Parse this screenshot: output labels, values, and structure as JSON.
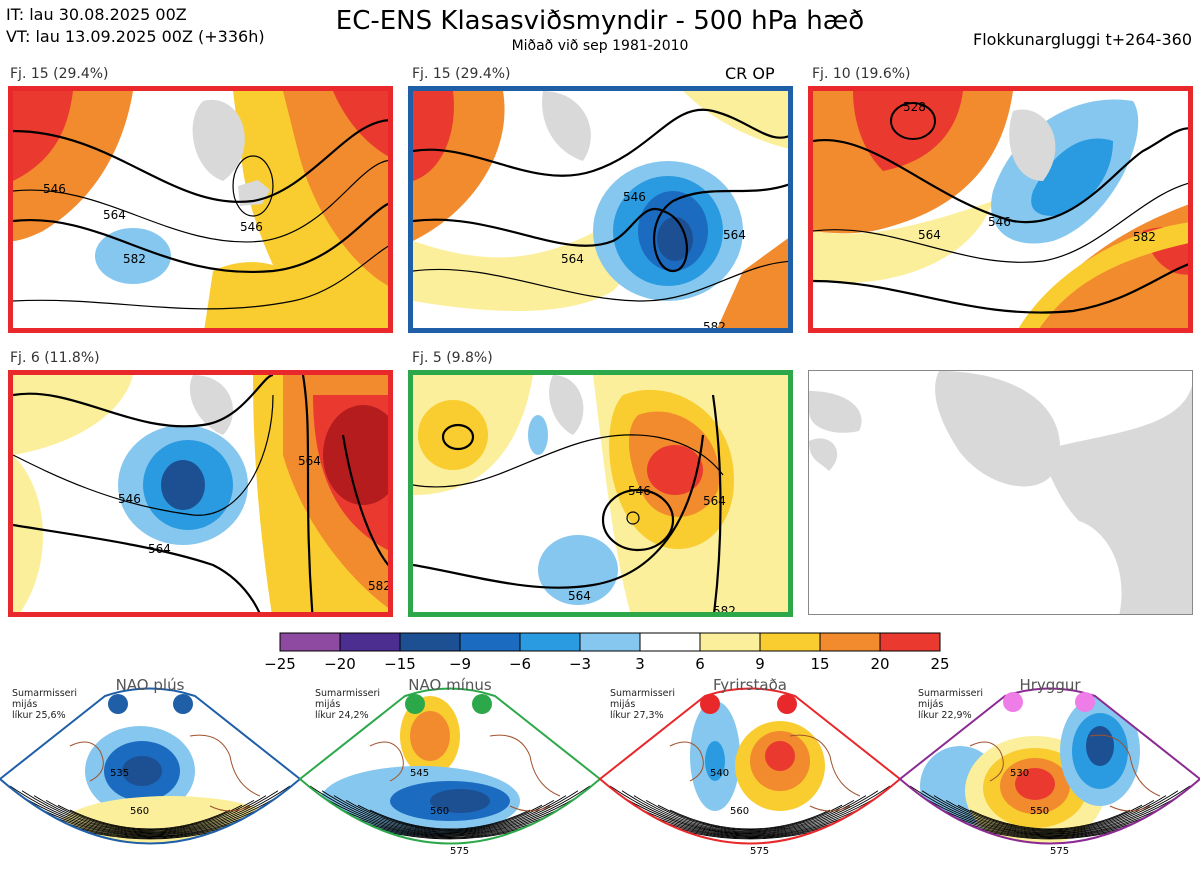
{
  "header": {
    "line1": "IT: lau 30.08.2025 00Z",
    "line2": "VT: lau 13.09.2025 00Z  (+336h)",
    "title": "EC-ENS Klasasviðsmyndir - 500 hPa hæð",
    "subtitle": "Miðað við sep 1981-2010",
    "right": "Flokkunargluggi t+264-360"
  },
  "panels": [
    {
      "label": "Fj. 15 (29.4%)",
      "frame_color": "#e8282b",
      "extra": ""
    },
    {
      "label": "Fj. 15 (29.4%)",
      "frame_color": "#1f5fa8",
      "extra": "CR OP"
    },
    {
      "label": "Fj. 10 (19.6%)",
      "frame_color": "#e8282b",
      "extra": ""
    },
    {
      "label": "Fj. 6 (11.8%)",
      "frame_color": "#e8282b",
      "extra": ""
    },
    {
      "label": "Fj. 5 (9.8%)",
      "frame_color": "#2ca84a",
      "extra": ""
    }
  ],
  "colorbar": {
    "ticks": [
      "−25",
      "−20",
      "−15",
      "−9",
      "−6",
      "−3",
      "3",
      "6",
      "9",
      "15",
      "20",
      "25"
    ],
    "colors": [
      "#8e4aa0",
      "#4b2e8f",
      "#1d4f93",
      "#1b6cc0",
      "#2a9be0",
      "#86c7ef",
      "#ffffff",
      "#fcef9c",
      "#f9cd30",
      "#f18b2e",
      "#ea3a30",
      "#b51c1e"
    ]
  },
  "regimes": [
    {
      "title": "NAO plús",
      "meta1": "Sumarmisseri",
      "meta2": "mijás",
      "meta3": "líkur 25,6%",
      "dot_color": "#1f5fa8",
      "frame_color": "#1f5fa8",
      "c1": "535",
      "c2": "560"
    },
    {
      "title": "NAO mínus",
      "meta1": "Sumarmisseri",
      "meta2": "mijás",
      "meta3": "líkur 24,2%",
      "dot_color": "#2ca84a",
      "frame_color": "#2ca84a",
      "c1": "545",
      "c2": "560",
      "c3": "575"
    },
    {
      "title": "Fyrirstaða",
      "meta1": "Sumarmisseri",
      "meta2": "mijás",
      "meta3": "líkur 27,3%",
      "dot_color": "#e8282b",
      "frame_color": "#e8282b",
      "c1": "540",
      "c2": "560",
      "c3": "575"
    },
    {
      "title": "Hryggur",
      "meta1": "Sumarmisseri",
      "meta2": "mijás",
      "meta3": "líkur 22,9%",
      "dot_color": "#ee7de8",
      "frame_color": "#8b2a92",
      "c1": "530",
      "c2": "550",
      "c3": "575"
    }
  ],
  "chart_data": {
    "type": "heatmap",
    "title": "EC-ENS Klasasviðsmyndir - 500 hPa hæð",
    "subtitle": "Miðað við sep 1981-2010",
    "variable": "500 hPa geopotential height anomaly",
    "anomaly_levels": [
      -25,
      -20,
      -15,
      -9,
      -6,
      -3,
      3,
      6,
      9,
      15,
      20,
      25
    ],
    "contour_labels_dam": [
      546,
      564,
      582
    ],
    "clusters": [
      {
        "name": "Fj. 15",
        "percent": 29.4,
        "regime": "Fyrirstaða"
      },
      {
        "name": "Fj. 15",
        "percent": 29.4,
        "regime": "NAO plús",
        "contains": "CR OP"
      },
      {
        "name": "Fj. 10",
        "percent": 19.6,
        "regime": "Fyrirstaða"
      },
      {
        "name": "Fj. 6",
        "percent": 11.8,
        "regime": "Fyrirstaða"
      },
      {
        "name": "Fj. 5",
        "percent": 9.8,
        "regime": "NAO mínus"
      }
    ],
    "regime_probabilities": [
      {
        "regime": "NAO plús",
        "percent": 25.6
      },
      {
        "regime": "NAO mínus",
        "percent": 24.2
      },
      {
        "regime": "Fyrirstaða",
        "percent": 27.3
      },
      {
        "regime": "Hryggur",
        "percent": 22.9
      }
    ]
  }
}
